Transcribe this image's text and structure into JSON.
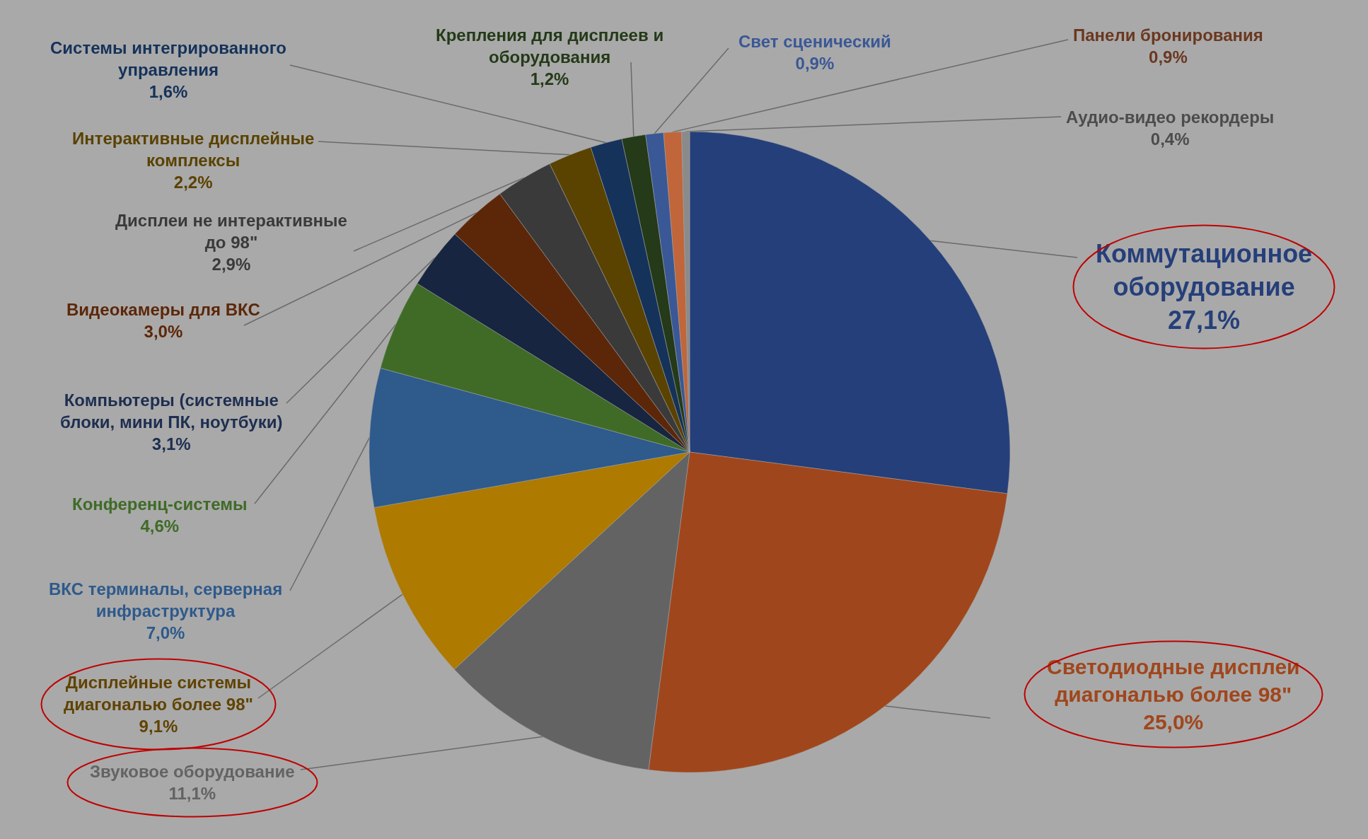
{
  "chart_data": {
    "type": "pie",
    "categories": [
      "Коммутационное оборудование",
      "Светодиодные дисплеи диагональю более 98\"",
      "Звуковое оборудование",
      "Дисплейные системы диагональю более 98\"",
      "ВКС терминалы, серверная инфраструктура",
      "Конференц-системы",
      "Компьютеры (системные блоки, мини ПК, ноутбуки)",
      "Видеокамеры для ВКС",
      "Дисплеи не интерактивные до 98\"",
      "Интерактивные дисплейные комплексы",
      "Системы интегрированного управления",
      "Крепления для дисплеев и оборудования",
      "Свет сценический",
      "Панели бронирования",
      "Аудио-видео рекордеры"
    ],
    "values": [
      27.1,
      25.0,
      11.1,
      9.1,
      7.0,
      4.6,
      3.1,
      3.0,
      2.9,
      2.2,
      1.6,
      1.2,
      0.9,
      0.9,
      0.4
    ],
    "value_labels": [
      "27,1%",
      "25,0%",
      "11,1%",
      "9,1%",
      "7,0%",
      "4,6%",
      "3,1%",
      "3,0%",
      "2,9%",
      "2,2%",
      "1,6%",
      "1,2%",
      "0,9%",
      "0,9%",
      "0,4%"
    ],
    "colors": [
      "#253f7a",
      "#a0461c",
      "#636363",
      "#ae7a00",
      "#2e5a8c",
      "#3f6b27",
      "#172540",
      "#5c2708",
      "#3a3a3a",
      "#5a4200",
      "#15325a",
      "#243a18",
      "#3a5896",
      "#c0663a",
      "#8a8a8a"
    ],
    "legend": false
  }
}
